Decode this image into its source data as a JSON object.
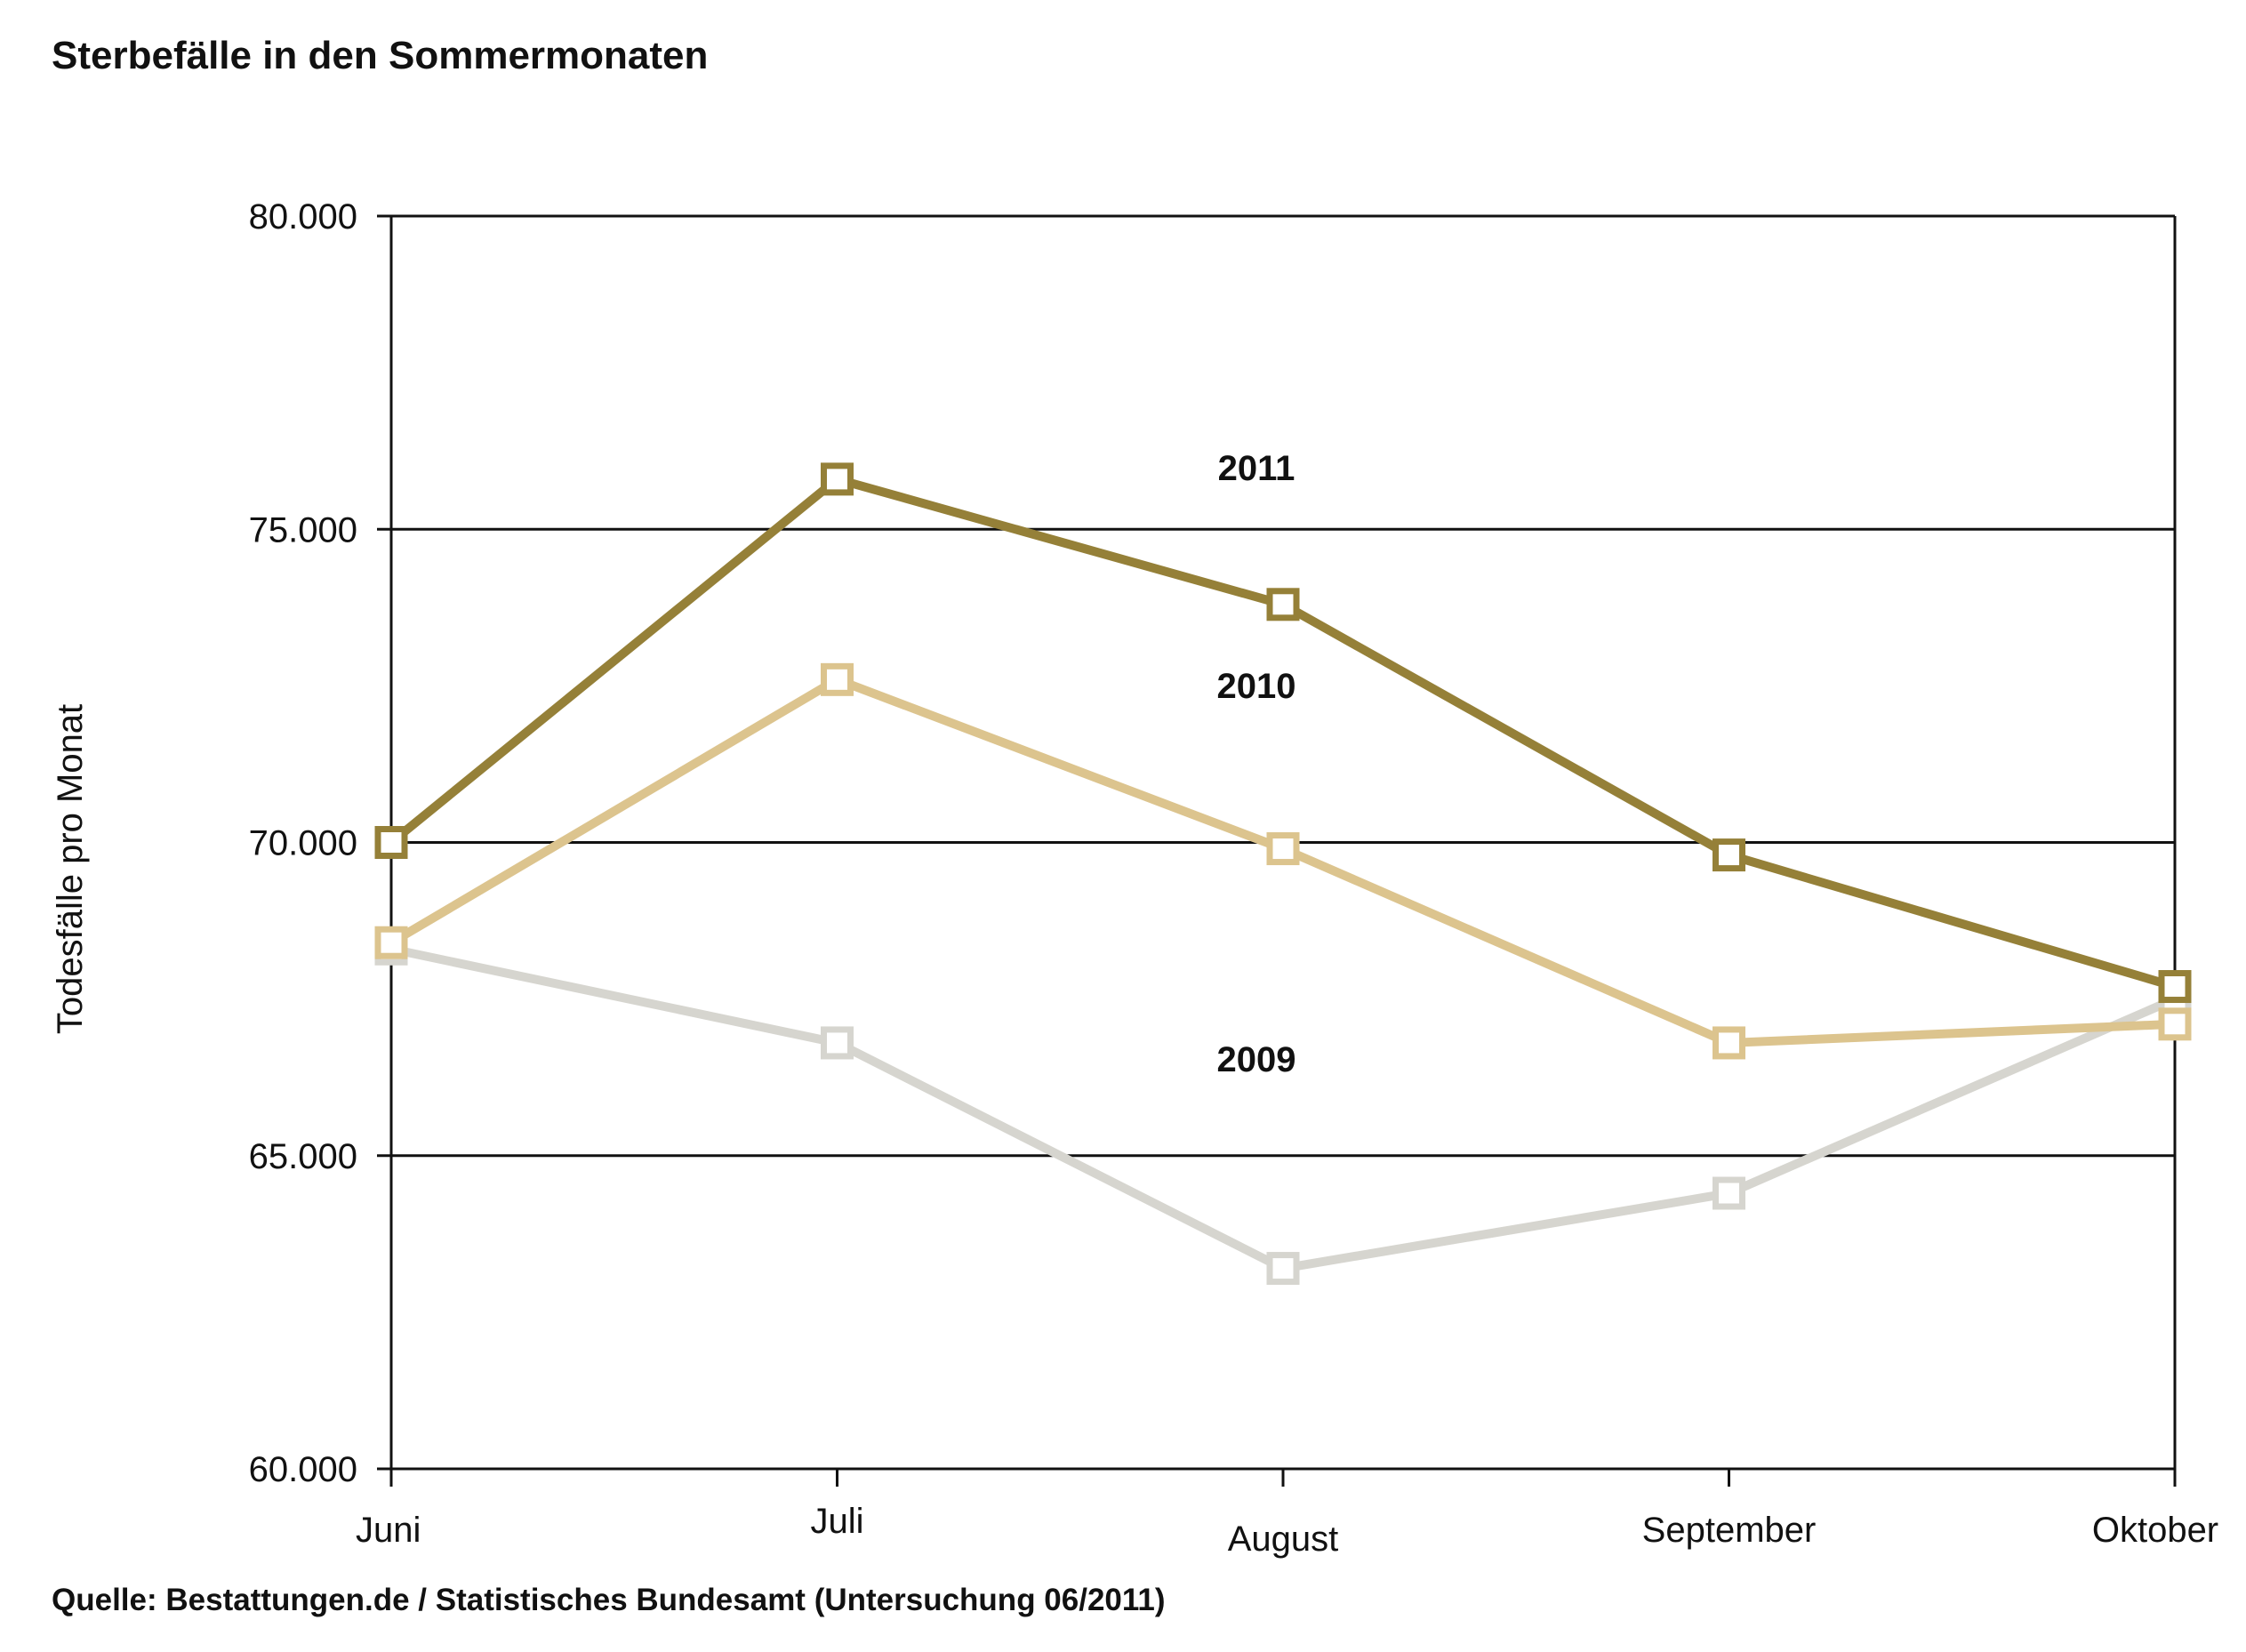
{
  "title": "Sterbefälle in den Sommermonaten",
  "source": "Quelle: Bestattungen.de / Statistisches Bundesamt (Untersuchung 06/2011)",
  "chart_data": {
    "type": "line",
    "title": "Sterbefälle in den Sommermonaten",
    "xlabel": "",
    "ylabel": "Todesfälle pro Monat",
    "categories": [
      "Juni",
      "Juli",
      "August",
      "September",
      "Oktober"
    ],
    "ylim": [
      60000,
      80000
    ],
    "yticks": [
      60000,
      65000,
      70000,
      75000,
      80000
    ],
    "ytick_labels": [
      "60.000",
      "65.000",
      "70.000",
      "75.000",
      "80.000"
    ],
    "grid": true,
    "legend": "inline labels",
    "marker": "square",
    "series": [
      {
        "name": "2009",
        "color": "#d6d5cf",
        "values": [
          68300,
          66800,
          63200,
          64400,
          67500
        ]
      },
      {
        "name": "2010",
        "color": "#dcc48e",
        "values": [
          68400,
          72600,
          69900,
          66800,
          67100
        ]
      },
      {
        "name": "2011",
        "color": "#958038",
        "values": [
          70000,
          75800,
          73800,
          69800,
          67700
        ]
      }
    ]
  }
}
